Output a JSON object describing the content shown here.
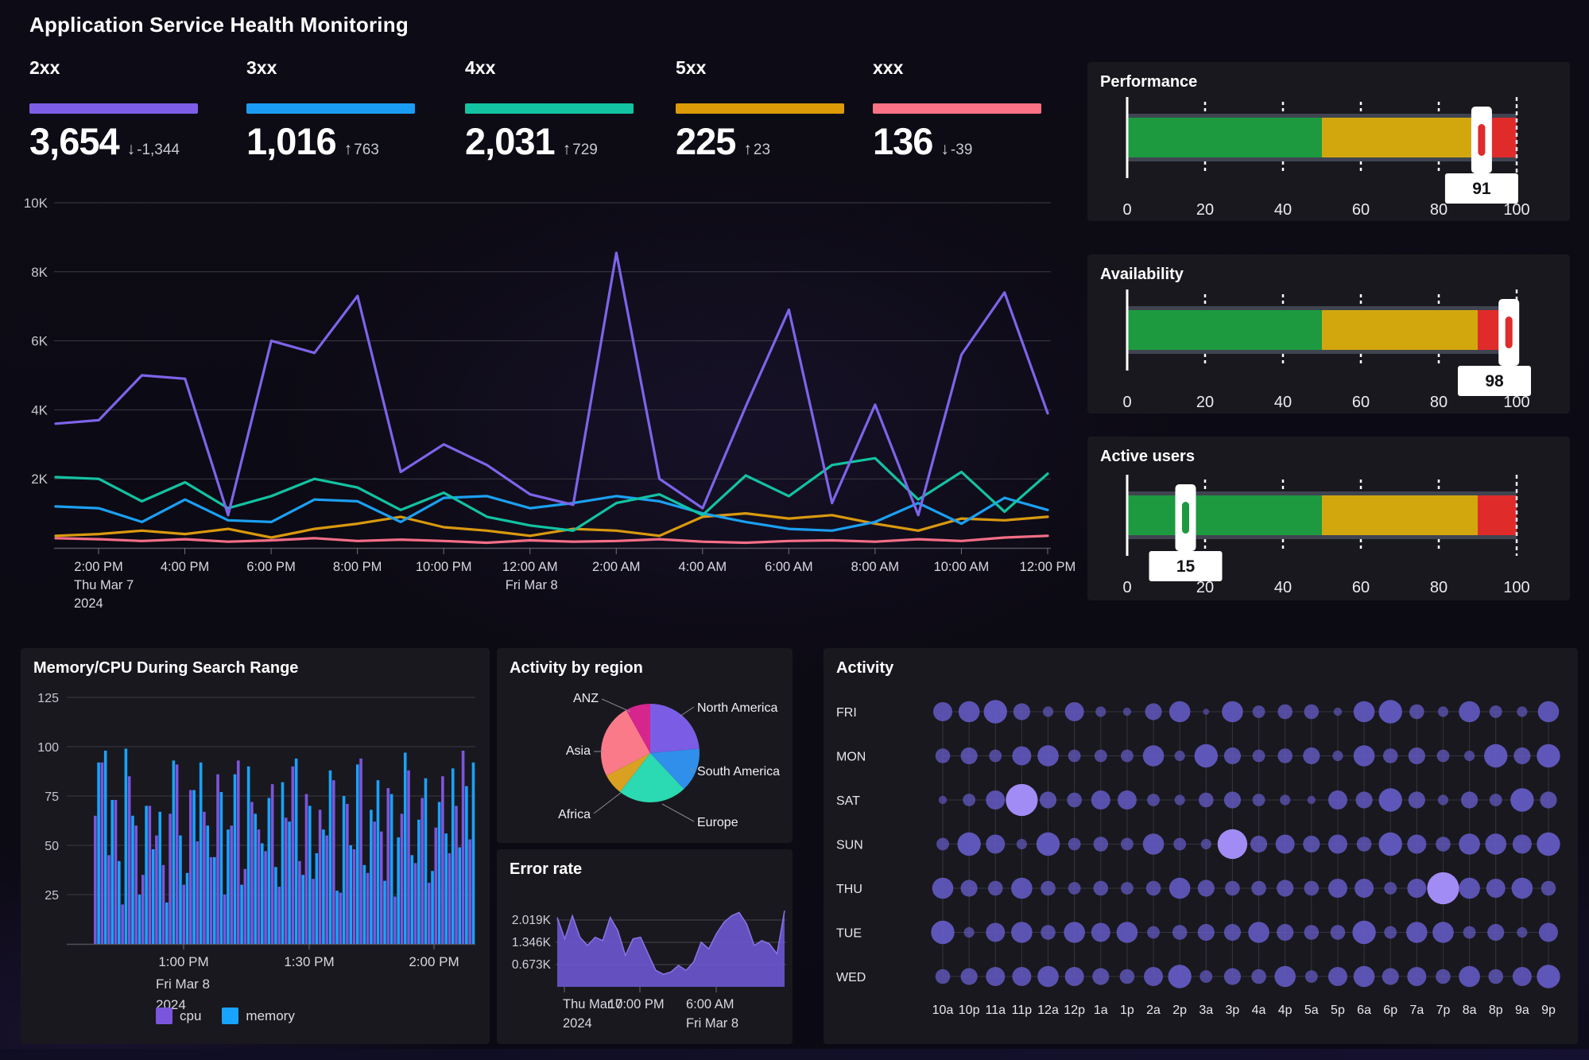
{
  "header": {
    "title": "Application Service Health Monitoring"
  },
  "status_panels": [
    {
      "label": "2xx",
      "value": "3,654",
      "delta": "-1,344",
      "direction": "down",
      "color": "#7c5fe6"
    },
    {
      "label": "3xx",
      "value": "1,016",
      "delta": "763",
      "direction": "up",
      "color": "#1b9cf4"
    },
    {
      "label": "4xx",
      "value": "2,031",
      "delta": "729",
      "direction": "up",
      "color": "#13c4a3"
    },
    {
      "label": "5xx",
      "value": "225",
      "delta": "23",
      "direction": "up",
      "color": "#dd9b07"
    },
    {
      "label": "xxx",
      "value": "136",
      "delta": "-39",
      "direction": "down",
      "color": "#fb7185"
    }
  ],
  "chart_data": [
    {
      "id": "http-status-timeseries",
      "type": "line",
      "title": "",
      "ylabel": "",
      "ylim": [
        0,
        10000
      ],
      "y_ticks": [
        "2K",
        "4K",
        "6K",
        "8K",
        "10K"
      ],
      "x_ticks": [
        "2:00 PM",
        "4:00 PM",
        "6:00 PM",
        "8:00 PM",
        "10:00 PM",
        "12:00 AM",
        "2:00 AM",
        "4:00 AM",
        "6:00 AM",
        "8:00 AM",
        "10:00 AM",
        "12:00 PM"
      ],
      "x_tick_sub": {
        "0": [
          "Thu Mar 7",
          "2024"
        ],
        "5": [
          "Fri Mar 8"
        ]
      },
      "grid": true,
      "legend_position": "none",
      "series": [
        {
          "name": "2xx",
          "color": "#7e64ea",
          "values_k": [
            3.6,
            3.7,
            5.0,
            4.9,
            0.95,
            6.0,
            5.65,
            7.3,
            2.2,
            3.0,
            2.4,
            1.55,
            1.25,
            8.55,
            2.0,
            1.15,
            4.1,
            6.9,
            1.3,
            4.15,
            0.95,
            5.6,
            7.4,
            3.9
          ]
        },
        {
          "name": "3xx",
          "color": "#1ba0f2",
          "values_k": [
            1.2,
            1.15,
            0.75,
            1.4,
            0.8,
            0.75,
            1.4,
            1.35,
            0.75,
            1.45,
            1.5,
            1.15,
            1.3,
            1.5,
            1.35,
            1.0,
            0.75,
            0.55,
            0.5,
            0.75,
            1.3,
            0.7,
            1.45,
            1.1
          ]
        },
        {
          "name": "4xx",
          "color": "#12c3a2",
          "values_k": [
            2.05,
            2.0,
            1.35,
            1.9,
            1.15,
            1.5,
            2.0,
            1.75,
            1.1,
            1.6,
            0.9,
            0.65,
            0.5,
            1.3,
            1.55,
            0.95,
            2.1,
            1.5,
            2.4,
            2.6,
            1.4,
            2.2,
            1.05,
            2.15
          ]
        },
        {
          "name": "5xx",
          "color": "#d9990f",
          "values_k": [
            0.35,
            0.4,
            0.5,
            0.4,
            0.55,
            0.3,
            0.55,
            0.7,
            0.9,
            0.6,
            0.5,
            0.35,
            0.55,
            0.5,
            0.35,
            0.9,
            1.0,
            0.85,
            0.95,
            0.7,
            0.5,
            0.85,
            0.8,
            0.9
          ]
        },
        {
          "name": "xxx",
          "color": "#f56e87",
          "values_k": [
            0.28,
            0.25,
            0.2,
            0.25,
            0.18,
            0.22,
            0.28,
            0.2,
            0.24,
            0.2,
            0.15,
            0.22,
            0.18,
            0.2,
            0.25,
            0.18,
            0.15,
            0.2,
            0.22,
            0.18,
            0.25,
            0.2,
            0.3,
            0.35
          ]
        }
      ]
    },
    {
      "id": "performance",
      "type": "gauge",
      "title": "Performance",
      "value": 91,
      "min": 0,
      "max": 100,
      "ticks": [
        0,
        20,
        40,
        60,
        80,
        100
      ],
      "zones": [
        {
          "to": 50,
          "color": "#1d9a3f"
        },
        {
          "to": 90,
          "color": "#d2a70e"
        },
        {
          "to": 100,
          "color": "#e02b2b"
        }
      ]
    },
    {
      "id": "availability",
      "type": "gauge",
      "title": "Availability",
      "value": 98,
      "min": 0,
      "max": 100,
      "ticks": [
        0,
        20,
        40,
        60,
        80,
        100
      ],
      "zones": [
        {
          "to": 50,
          "color": "#1d9a3f"
        },
        {
          "to": 90,
          "color": "#d2a70e"
        },
        {
          "to": 100,
          "color": "#e02b2b"
        }
      ]
    },
    {
      "id": "active-users",
      "type": "gauge",
      "title": "Active users",
      "value": 15,
      "min": 0,
      "max": 100,
      "ticks": [
        0,
        20,
        40,
        60,
        80,
        100
      ],
      "zones": [
        {
          "to": 50,
          "color": "#1d9a3f"
        },
        {
          "to": 90,
          "color": "#d2a70e"
        },
        {
          "to": 100,
          "color": "#e02b2b"
        }
      ]
    },
    {
      "id": "memory-cpu",
      "type": "bar",
      "title": "Memory/CPU During Search Range",
      "ylim": [
        0,
        125
      ],
      "y_ticks": [
        25,
        50,
        75,
        100,
        125
      ],
      "x_ticks": [
        "1:00 PM",
        "1:30 PM",
        "2:00 PM"
      ],
      "x_tick_sub": {
        "0": [
          "Fri Mar 8",
          "2024"
        ]
      },
      "grid": true,
      "legend_position": "bottom",
      "legend": [
        "cpu",
        "memory"
      ],
      "series": [
        {
          "name": "cpu",
          "color": "#7b56dd",
          "values": [
            65,
            92,
            45,
            73,
            20,
            85,
            60,
            35,
            70,
            55,
            40,
            66,
            91,
            30,
            78,
            52,
            67,
            44,
            86,
            25,
            60,
            93,
            38,
            72,
            58,
            47,
            81,
            29,
            64,
            90,
            42,
            76,
            33,
            68,
            55,
            83,
            26,
            71,
            48,
            94,
            36,
            62,
            57,
            79,
            24,
            66,
            88,
            41,
            74,
            31,
            59,
            85,
            46,
            70,
            98,
            53
          ]
        },
        {
          "name": "memory",
          "color": "#18a3fd",
          "values": [
            92,
            98,
            73,
            42,
            99,
            65,
            25,
            70,
            48,
            67,
            21,
            93,
            55,
            36,
            78,
            92,
            60,
            44,
            77,
            58,
            86,
            30,
            90,
            66,
            51,
            74,
            39,
            82,
            62,
            94,
            35,
            70,
            46,
            58,
            88,
            27,
            75,
            50,
            91,
            40,
            68,
            83,
            32,
            76,
            54,
            97,
            45,
            63,
            84,
            37,
            72,
            56,
            89,
            49,
            80,
            92
          ]
        }
      ]
    },
    {
      "id": "activity-by-region",
      "type": "pie",
      "title": "Activity by region",
      "slices": [
        {
          "label": "North America",
          "value": 23.6,
          "color": "#7b5ce5"
        },
        {
          "label": "South America",
          "value": 14.4,
          "color": "#2f8fea"
        },
        {
          "label": "Europe",
          "value": 22.5,
          "color": "#2bd9b2"
        },
        {
          "label": "Africa",
          "value": 6.9,
          "color": "#d9a021"
        },
        {
          "label": "Asia",
          "value": 24.5,
          "color": "#fb7a8a"
        },
        {
          "label": "ANZ",
          "value": 8.1,
          "color": "#d6258d"
        }
      ]
    },
    {
      "id": "error-rate",
      "type": "area",
      "title": "Error rate",
      "color": "#6a56cd",
      "y_ticks": [
        "0.673K",
        "1.346K",
        "2.019K"
      ],
      "y_tick_values_k": [
        0.673,
        1.346,
        2.019
      ],
      "x_ticks": [
        "Thu Mar 7",
        "10:00 PM",
        "6:00 AM"
      ],
      "x_tick_sub": {
        "0": [
          "2024"
        ],
        "2": [
          "Fri Mar 8"
        ]
      },
      "values_k": [
        2.1,
        1.45,
        2.15,
        1.5,
        1.25,
        1.5,
        1.4,
        2.1,
        1.7,
        0.95,
        1.45,
        1.5,
        1.0,
        0.5,
        0.38,
        0.45,
        0.65,
        0.5,
        0.75,
        1.35,
        1.15,
        1.6,
        1.95,
        2.15,
        2.25,
        1.9,
        1.25,
        1.4,
        1.3,
        1.0,
        2.3
      ]
    },
    {
      "id": "activity",
      "type": "punchcard",
      "title": "Activity",
      "bubble_color": "#655cc9",
      "highlight_color": "#a18bf4",
      "rows": [
        "FRI",
        "MON",
        "SAT",
        "SUN",
        "THU",
        "TUE",
        "WED"
      ],
      "cols": [
        "10a",
        "10p",
        "11a",
        "11p",
        "12a",
        "12p",
        "1a",
        "1p",
        "2a",
        "2p",
        "3a",
        "3p",
        "4a",
        "4p",
        "5a",
        "5p",
        "6a",
        "6p",
        "7a",
        "7p",
        "8a",
        "8p",
        "9a",
        "9p"
      ],
      "sizes": [
        [
          7,
          8,
          9,
          6,
          3,
          7,
          3,
          2,
          6,
          8,
          1,
          8,
          4,
          5,
          5,
          2,
          8,
          9,
          5,
          3,
          8,
          4,
          3,
          8
        ],
        [
          5,
          6,
          4,
          7,
          8,
          4,
          4,
          4,
          8,
          3,
          9,
          6,
          4,
          5,
          6,
          3,
          8,
          5,
          6,
          4,
          3,
          9,
          6,
          9
        ],
        [
          2,
          4,
          7,
          13,
          6,
          5,
          7,
          7,
          4,
          3,
          5,
          6,
          4,
          3,
          2,
          7,
          6,
          9,
          6,
          3,
          6,
          4,
          9,
          6
        ],
        [
          4,
          9,
          7,
          3,
          9,
          4,
          5,
          4,
          8,
          4,
          3,
          12,
          6,
          7,
          6,
          7,
          5,
          9,
          7,
          5,
          8,
          8,
          7,
          9
        ],
        [
          8,
          6,
          5,
          8,
          5,
          4,
          5,
          4,
          5,
          8,
          6,
          5,
          5,
          6,
          5,
          7,
          7,
          4,
          7,
          13,
          8,
          7,
          8,
          5
        ],
        [
          9,
          3,
          7,
          8,
          5,
          8,
          7,
          8,
          4,
          5,
          6,
          6,
          8,
          6,
          5,
          5,
          9,
          4,
          8,
          8,
          4,
          6,
          3,
          7
        ],
        [
          5,
          6,
          7,
          7,
          8,
          7,
          6,
          5,
          7,
          9,
          4,
          6,
          5,
          8,
          4,
          7,
          8,
          6,
          7,
          5,
          8,
          5,
          7,
          9
        ]
      ]
    }
  ]
}
